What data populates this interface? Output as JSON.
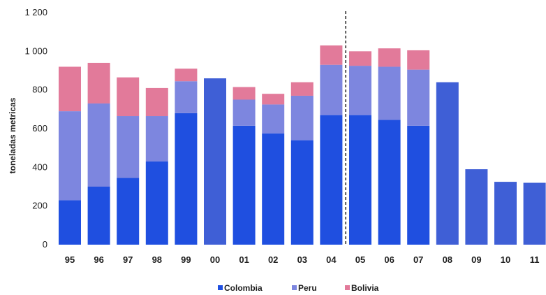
{
  "chart_data": {
    "type": "bar",
    "stacked": true,
    "categories": [
      "95",
      "96",
      "97",
      "98",
      "99",
      "00",
      "01",
      "02",
      "03",
      "04",
      "05",
      "06",
      "07",
      "08",
      "09",
      "10",
      "11"
    ],
    "series": [
      {
        "name": "Colombia",
        "color": "#1f4fe0",
        "values": [
          230,
          300,
          345,
          430,
          680,
          null,
          615,
          575,
          540,
          670,
          670,
          645,
          615,
          null,
          null,
          null,
          null
        ]
      },
      {
        "name": "Peru",
        "color": "#7d86df",
        "values": [
          460,
          430,
          320,
          235,
          165,
          null,
          135,
          150,
          230,
          260,
          255,
          275,
          290,
          null,
          null,
          null,
          null
        ]
      },
      {
        "name": "Bolivia",
        "color": "#e27a9a",
        "values": [
          230,
          210,
          200,
          145,
          65,
          null,
          65,
          55,
          70,
          100,
          75,
          95,
          100,
          null,
          null,
          null,
          null
        ]
      }
    ],
    "totals_only": {
      "color": "#3f5fd6",
      "values": [
        null,
        null,
        null,
        null,
        null,
        860,
        null,
        null,
        null,
        null,
        null,
        null,
        null,
        840,
        390,
        325,
        320
      ]
    },
    "ylabel": "toneladas metricas",
    "y_ticks": [
      "1 200",
      "1 000",
      "800",
      "600",
      "400",
      "200",
      "0"
    ],
    "y_tick_values": [
      1200,
      1000,
      800,
      600,
      400,
      200,
      0
    ],
    "ylim": [
      0,
      1200
    ],
    "grid": false,
    "legend_position": "bottom",
    "divider_after_category": "04"
  }
}
